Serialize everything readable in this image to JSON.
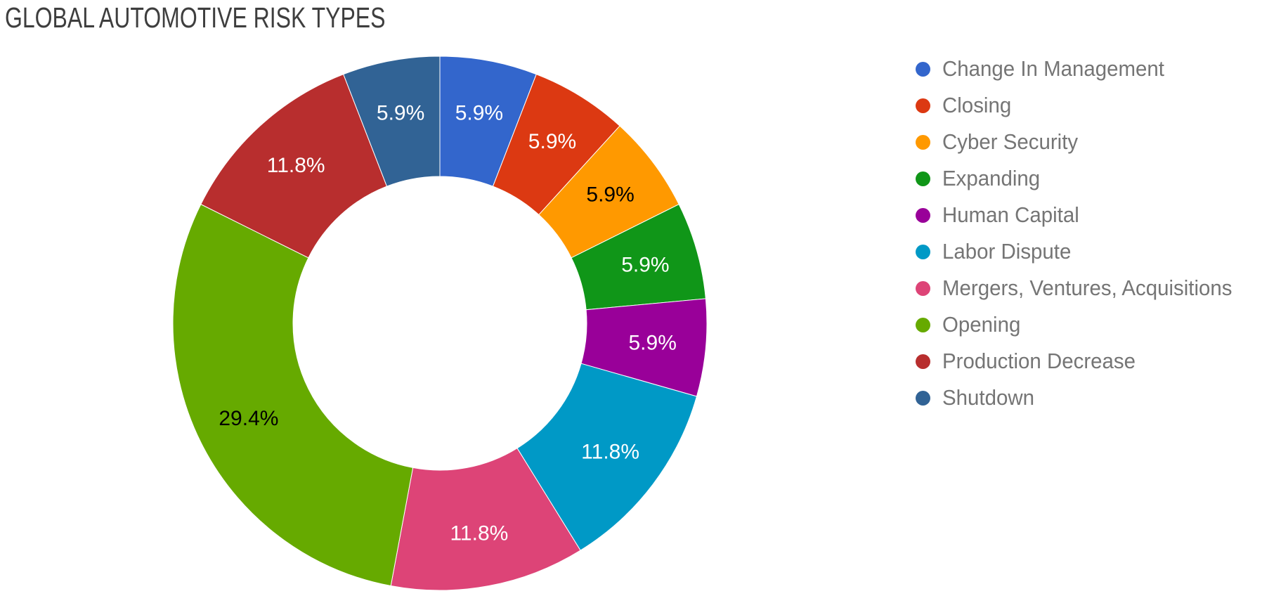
{
  "page": {
    "background": "#ffffff",
    "title_color": "#3e3e3e",
    "legend_text_color": "#757575"
  },
  "chart_data": {
    "type": "pie",
    "subtype": "donut",
    "title": "GLOBAL AUTOMOTIVE RISK TYPES",
    "legend_position": "right",
    "pie_hole": 0.55,
    "rotation_deg": 0,
    "categories": [
      "Change In Management",
      "Closing",
      "Cyber Security",
      "Expanding",
      "Human Capital",
      "Labor Dispute",
      "Mergers, Ventures, Acquisitions",
      "Opening",
      "Production Decrease",
      "Shutdown"
    ],
    "values": [
      1,
      1,
      1,
      1,
      1,
      2,
      2,
      5,
      2,
      1
    ],
    "percents": [
      5.9,
      5.9,
      5.9,
      5.9,
      5.9,
      11.8,
      11.8,
      29.4,
      11.8,
      5.9
    ],
    "slice_labels": [
      "5.9%",
      "5.9%",
      "5.9%",
      "5.9%",
      "5.9%",
      "11.8%",
      "11.8%",
      "29.4%",
      "11.8%",
      "5.9%"
    ],
    "colors": [
      "#3366CC",
      "#DC3912",
      "#FF9900",
      "#109618",
      "#990099",
      "#0099C6",
      "#DD4477",
      "#66AA00",
      "#B82E2E",
      "#316395"
    ],
    "slice_label_colors": [
      "#ffffff",
      "#ffffff",
      "#000000",
      "#ffffff",
      "#ffffff",
      "#ffffff",
      "#ffffff",
      "#000000",
      "#ffffff",
      "#ffffff"
    ]
  }
}
